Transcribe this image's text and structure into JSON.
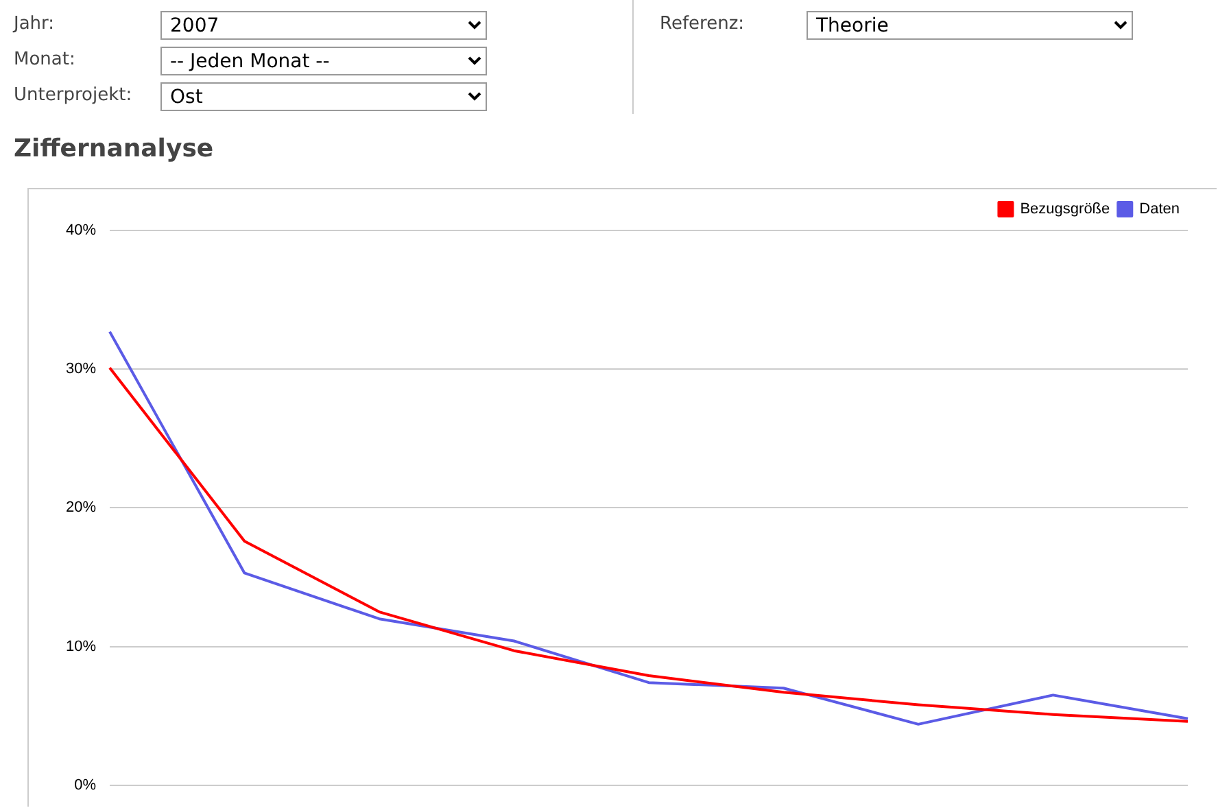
{
  "chart_data": {
    "type": "line",
    "title": "Ziffernanalyse",
    "annotations": [
      "Jahr:",
      "2007",
      "Monat:",
      "-- Jeden Monat --",
      "Unterprojekt:",
      "Ost",
      "Referenz:",
      "Theorie"
    ],
    "categories": [
      null,
      null,
      null,
      null,
      null,
      null,
      null,
      null,
      null
    ],
    "series": [
      {
        "name": "Bezugsgröße",
        "color": "#ff0000",
        "values": [
          30.1,
          17.6,
          12.5,
          9.7,
          7.9,
          6.7,
          5.8,
          5.1,
          4.6
        ]
      },
      {
        "name": "Daten",
        "color": "#5b5be6",
        "values": [
          32.7,
          15.3,
          12.0,
          10.4,
          7.4,
          7.0,
          4.4,
          6.5,
          4.8
        ]
      }
    ],
    "ylim": [
      0,
      40
    ],
    "yticks": [
      {
        "value": 0,
        "label": "0%"
      },
      {
        "value": 10,
        "label": "10%"
      },
      {
        "value": 20,
        "label": "20%"
      },
      {
        "value": 30,
        "label": "30%"
      },
      {
        "value": 40,
        "label": "40%"
      }
    ],
    "grid": "y",
    "legend": "top right",
    "marker": "none",
    "line_style": "solid"
  }
}
